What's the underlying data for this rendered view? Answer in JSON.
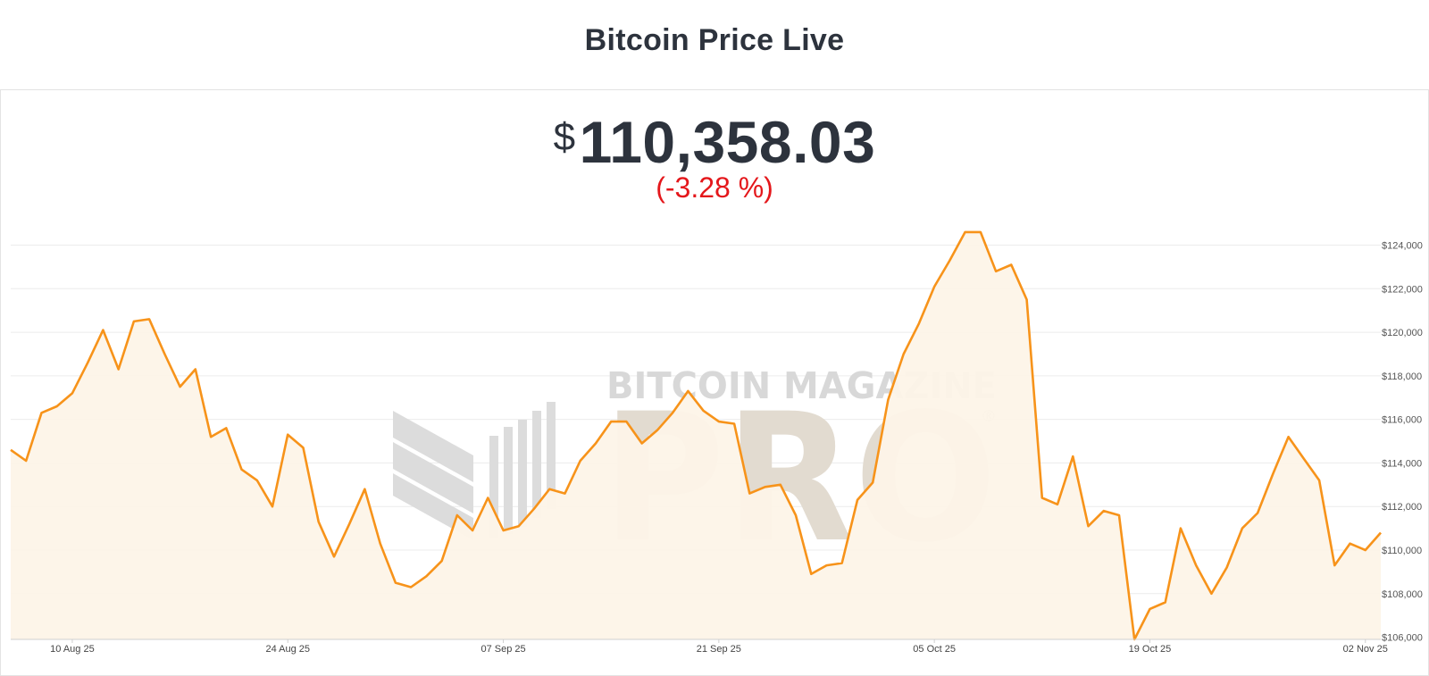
{
  "page": {
    "title": "Bitcoin Price Live"
  },
  "ticker": {
    "currency_symbol": "$",
    "price": "110,358.03",
    "change": "(-3.28 %)"
  },
  "watermark": {
    "brand": "BITCOIN MAGAZINE",
    "product": "PRO",
    "mark": "®"
  },
  "colors": {
    "line": "#f7931a",
    "fill": "#fdf4e8",
    "negative": "#e4171b",
    "grid": "#ececec",
    "text": "#2d333d"
  },
  "chart_data": {
    "type": "area",
    "title": "",
    "xlabel": "",
    "ylabel": "",
    "x_tick_labels": [
      "10 Aug 25",
      "24 Aug 25",
      "07 Sep 25",
      "21 Sep 25",
      "05 Oct 25",
      "19 Oct 25",
      "02 Nov 25"
    ],
    "y_tick_labels": [
      "$106,000",
      "$108,000",
      "$110,000",
      "$112,000",
      "$114,000",
      "$116,000",
      "$118,000",
      "$120,000",
      "$122,000",
      "$124,000"
    ],
    "ylim": [
      105900,
      124800
    ],
    "grid": true,
    "series": [
      {
        "x": [
          "2025-08-06",
          "2025-08-07",
          "2025-08-08",
          "2025-08-09",
          "2025-08-10",
          "2025-08-11",
          "2025-08-12",
          "2025-08-13",
          "2025-08-14",
          "2025-08-15",
          "2025-08-16",
          "2025-08-17",
          "2025-08-18",
          "2025-08-19",
          "2025-08-20",
          "2025-08-21",
          "2025-08-22",
          "2025-08-23",
          "2025-08-24",
          "2025-08-25",
          "2025-08-26",
          "2025-08-27",
          "2025-08-28",
          "2025-08-29",
          "2025-08-30",
          "2025-08-31",
          "2025-09-01",
          "2025-09-02",
          "2025-09-03",
          "2025-09-04",
          "2025-09-05",
          "2025-09-06",
          "2025-09-07",
          "2025-09-08",
          "2025-09-09",
          "2025-09-10",
          "2025-09-11",
          "2025-09-12",
          "2025-09-13",
          "2025-09-14",
          "2025-09-15",
          "2025-09-16",
          "2025-09-17",
          "2025-09-18",
          "2025-09-19",
          "2025-09-20",
          "2025-09-21",
          "2025-09-22",
          "2025-09-23",
          "2025-09-24",
          "2025-09-25",
          "2025-09-26",
          "2025-09-27",
          "2025-09-28",
          "2025-09-29",
          "2025-09-30",
          "2025-10-01",
          "2025-10-02",
          "2025-10-03",
          "2025-10-04",
          "2025-10-05",
          "2025-10-06",
          "2025-10-07",
          "2025-10-08",
          "2025-10-09",
          "2025-10-10",
          "2025-10-11",
          "2025-10-12",
          "2025-10-13",
          "2025-10-14",
          "2025-10-15",
          "2025-10-16",
          "2025-10-17",
          "2025-10-18",
          "2025-10-19",
          "2025-10-20",
          "2025-10-21",
          "2025-10-22",
          "2025-10-23",
          "2025-10-24",
          "2025-10-25",
          "2025-10-26",
          "2025-10-27",
          "2025-10-28",
          "2025-10-29",
          "2025-10-30",
          "2025-10-31",
          "2025-11-01",
          "2025-11-02",
          "2025-11-03"
        ],
        "values": [
          114600,
          114100,
          116300,
          116600,
          117200,
          118600,
          120100,
          118300,
          120500,
          120600,
          119000,
          117500,
          118300,
          115200,
          115600,
          113700,
          113200,
          112000,
          115300,
          114700,
          111300,
          109700,
          111200,
          112800,
          110300,
          108500,
          108300,
          108800,
          109500,
          111600,
          110900,
          112400,
          110900,
          111100,
          111900,
          112800,
          112600,
          114100,
          114900,
          115900,
          115900,
          114900,
          115500,
          116300,
          117300,
          116400,
          115900,
          115800,
          112600,
          112900,
          113000,
          111600,
          108900,
          109300,
          109400,
          112300,
          113100,
          116900,
          119000,
          120400,
          122100,
          123300,
          124600,
          124600,
          122800,
          123100,
          121500,
          112400,
          112100,
          114300,
          111100,
          111800,
          111600,
          105900,
          107300,
          107600,
          111000,
          109300,
          108000,
          109200,
          111000,
          111700,
          113500,
          115200,
          114200,
          113200,
          109300,
          110300,
          110000,
          110800
        ]
      }
    ]
  }
}
